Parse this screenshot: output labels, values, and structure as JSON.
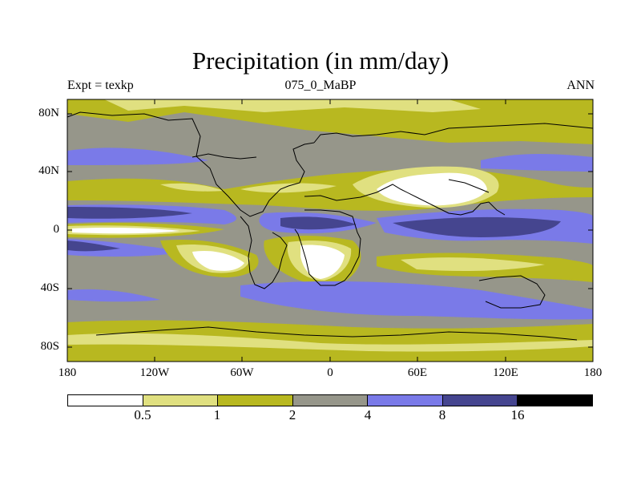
{
  "title": "Precipitation (in mm/day)",
  "subtitle_left": "Expt = texkp",
  "subtitle_center": "075_0_MaBP",
  "subtitle_right": "ANN",
  "lat_labels": [
    "80N",
    "40N",
    "0",
    "40S",
    "80S"
  ],
  "lon_labels": [
    "180",
    "120W",
    "60W",
    "0",
    "60E",
    "120E",
    "180"
  ],
  "colorbar": {
    "labels": [
      "0.5",
      "1",
      "2",
      "4",
      "8",
      "16"
    ],
    "colors": [
      "#ffffff",
      "#e0e080",
      "#b8b820",
      "#96968a",
      "#7a7ae8",
      "#45458f",
      "#000000"
    ]
  },
  "palette": {
    "white": "#ffffff",
    "light_yellow": "#e0e080",
    "olive": "#b8b820",
    "gray": "#96968a",
    "blue": "#7a7ae8",
    "dark_blue": "#45458f"
  }
}
